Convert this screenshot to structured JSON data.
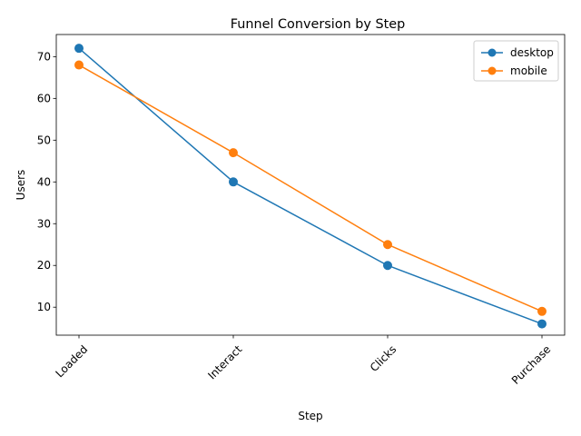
{
  "chart_data": {
    "type": "line",
    "title": "Funnel Conversion by Step",
    "xlabel": "Step",
    "ylabel": "Users",
    "categories": [
      "Loaded",
      "Interact",
      "Clicks",
      "Purchase"
    ],
    "series": [
      {
        "name": "desktop",
        "values": [
          72,
          40,
          20,
          6
        ],
        "color": "#1f77b4"
      },
      {
        "name": "mobile",
        "values": [
          68,
          47,
          25,
          9
        ],
        "color": "#ff7f0e"
      }
    ],
    "ylim": [
      3.3,
      75.3
    ],
    "yticks": [
      10,
      20,
      30,
      40,
      50,
      60,
      70
    ],
    "grid": false,
    "legend_position": "top-right",
    "x_tick_rotation": "45 degrees"
  }
}
